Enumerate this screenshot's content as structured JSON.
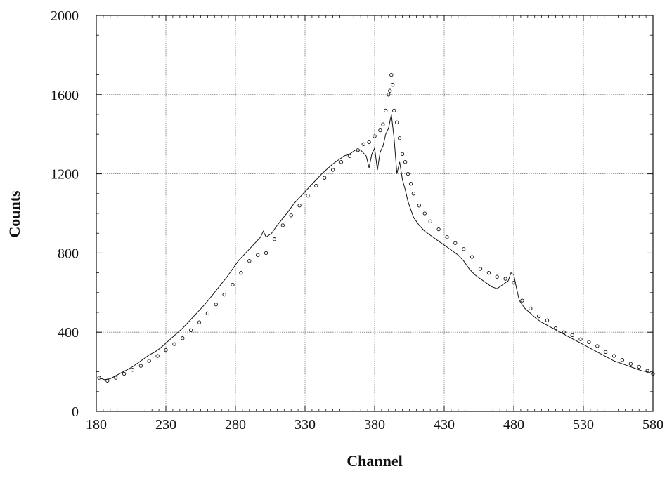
{
  "chart_data": {
    "type": "line",
    "title": "",
    "xlabel": "Channel",
    "ylabel": "Counts",
    "xlim": [
      180,
      580
    ],
    "ylim": [
      0,
      2000
    ],
    "x_ticks": [
      180,
      230,
      280,
      330,
      380,
      430,
      480,
      530,
      580
    ],
    "y_ticks": [
      0,
      400,
      800,
      1200,
      1600,
      2000
    ],
    "x_tick_labels": [
      "180",
      "230",
      "280",
      "330",
      "380",
      "430",
      "480",
      "530",
      "580"
    ],
    "y_tick_labels": [
      "0",
      "400",
      "800",
      "1200",
      "1600",
      "2000"
    ],
    "grid": true,
    "legend": "none",
    "colors": {
      "line": "#111111",
      "points": "#111111",
      "grid": "#777777",
      "frame": "#111111"
    },
    "series": [
      {
        "style": "line",
        "x": [
          182,
          186,
          190,
          194,
          198,
          202,
          206,
          210,
          214,
          218,
          222,
          226,
          230,
          234,
          238,
          242,
          246,
          250,
          254,
          258,
          262,
          266,
          270,
          274,
          278,
          282,
          286,
          290,
          294,
          298,
          300,
          302,
          306,
          310,
          314,
          318,
          322,
          326,
          330,
          334,
          338,
          342,
          346,
          350,
          354,
          358,
          362,
          366,
          370,
          374,
          376,
          378,
          380,
          382,
          384,
          386,
          388,
          390,
          392,
          394,
          396,
          398,
          400,
          402,
          404,
          408,
          412,
          416,
          420,
          424,
          428,
          432,
          436,
          440,
          444,
          448,
          452,
          456,
          460,
          464,
          468,
          472,
          476,
          478,
          480,
          482,
          484,
          488,
          492,
          496,
          500,
          504,
          508,
          512,
          516,
          520,
          524,
          528,
          532,
          536,
          540,
          544,
          548,
          552,
          556,
          560,
          564,
          568,
          572,
          576,
          580
        ],
        "y": [
          170,
          160,
          165,
          180,
          195,
          210,
          225,
          245,
          265,
          285,
          300,
          320,
          345,
          370,
          395,
          420,
          450,
          480,
          510,
          540,
          575,
          610,
          645,
          680,
          720,
          760,
          790,
          820,
          850,
          880,
          910,
          880,
          900,
          940,
          975,
          1010,
          1050,
          1080,
          1110,
          1140,
          1170,
          1200,
          1225,
          1250,
          1270,
          1290,
          1300,
          1320,
          1320,
          1290,
          1230,
          1300,
          1330,
          1220,
          1310,
          1340,
          1400,
          1430,
          1500,
          1380,
          1200,
          1260,
          1170,
          1120,
          1060,
          980,
          940,
          910,
          890,
          870,
          850,
          830,
          810,
          790,
          760,
          720,
          690,
          670,
          650,
          630,
          620,
          640,
          660,
          700,
          690,
          620,
          560,
          520,
          495,
          470,
          450,
          435,
          420,
          405,
          390,
          375,
          360,
          345,
          330,
          315,
          300,
          285,
          270,
          255,
          245,
          235,
          225,
          215,
          205,
          200,
          190
        ]
      },
      {
        "style": "points",
        "x": [
          182,
          188,
          194,
          200,
          206,
          212,
          218,
          224,
          230,
          236,
          242,
          248,
          254,
          260,
          266,
          272,
          278,
          284,
          290,
          296,
          302,
          308,
          314,
          320,
          326,
          332,
          338,
          344,
          350,
          356,
          362,
          368,
          372,
          376,
          380,
          384,
          386,
          388,
          390,
          391,
          392,
          393,
          394,
          396,
          398,
          400,
          402,
          404,
          406,
          408,
          412,
          416,
          420,
          426,
          432,
          438,
          444,
          450,
          456,
          462,
          468,
          474,
          480,
          486,
          492,
          498,
          504,
          510,
          516,
          522,
          528,
          534,
          540,
          546,
          552,
          558,
          564,
          570,
          576,
          580
        ],
        "y": [
          170,
          155,
          170,
          190,
          210,
          230,
          255,
          280,
          310,
          340,
          370,
          410,
          450,
          495,
          540,
          590,
          640,
          700,
          760,
          790,
          800,
          870,
          940,
          990,
          1040,
          1090,
          1140,
          1180,
          1220,
          1260,
          1290,
          1320,
          1350,
          1360,
          1390,
          1420,
          1450,
          1520,
          1600,
          1620,
          1700,
          1650,
          1520,
          1460,
          1380,
          1300,
          1260,
          1200,
          1150,
          1100,
          1040,
          1000,
          960,
          920,
          880,
          850,
          820,
          780,
          720,
          700,
          680,
          670,
          650,
          560,
          520,
          480,
          460,
          420,
          400,
          385,
          365,
          350,
          330,
          300,
          280,
          260,
          240,
          225,
          205,
          190
        ]
      }
    ]
  }
}
